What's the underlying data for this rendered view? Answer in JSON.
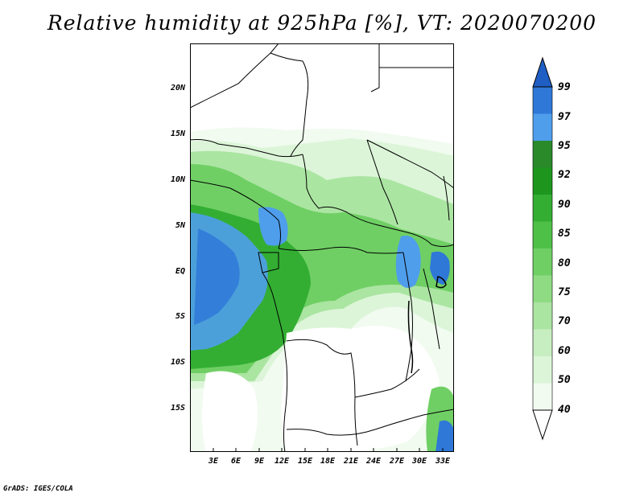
{
  "title": "Relative humidity at 925hPa [%], VT: 2020070200",
  "credit": "GrADS: IGES/COLA",
  "map": {
    "lat_labels": [
      "20N",
      "15N",
      "10N",
      "5N",
      "EQ",
      "5S",
      "10S",
      "15S"
    ],
    "lon_labels": [
      "3E",
      "6E",
      "9E",
      "12E",
      "15E",
      "18E",
      "21E",
      "24E",
      "27E",
      "30E",
      "33E"
    ]
  },
  "colorbar": {
    "levels": [
      "40",
      "50",
      "60",
      "70",
      "75",
      "80",
      "85",
      "90",
      "92",
      "95",
      "97",
      "99"
    ],
    "colors": [
      "#f1fbf0",
      "#dcf5d8",
      "#c7eec1",
      "#abe5a2",
      "#8fdb84",
      "#6fcf64",
      "#4fc047",
      "#33ae33",
      "#1e961e",
      "#2a8a2a",
      "#4f9eec",
      "#2f78d8",
      "#1f5fc4"
    ]
  }
}
